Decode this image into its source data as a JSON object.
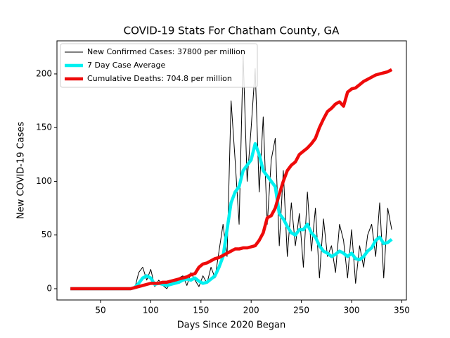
{
  "chart_data": {
    "type": "line",
    "title": "COVID-19 Stats For Chatham County, GA",
    "xlabel": "Days Since 2020 Began",
    "ylabel": "New COVID-19 Cases",
    "xlim": [
      6.6,
      354.6
    ],
    "ylim": [
      -10.5,
      230.8
    ],
    "xticks": [
      50,
      100,
      150,
      200,
      250,
      300,
      350
    ],
    "yticks": [
      0,
      50,
      100,
      150,
      200
    ],
    "legend": "upper left",
    "x": [
      20,
      24,
      28,
      32,
      36,
      40,
      44,
      48,
      52,
      56,
      60,
      64,
      68,
      72,
      76,
      80,
      84,
      88,
      92,
      96,
      100,
      104,
      108,
      112,
      116,
      120,
      124,
      128,
      132,
      136,
      140,
      144,
      148,
      152,
      156,
      160,
      164,
      168,
      172,
      176,
      180,
      184,
      188,
      192,
      196,
      200,
      204,
      208,
      212,
      216,
      220,
      224,
      228,
      232,
      236,
      240,
      244,
      248,
      252,
      256,
      260,
      264,
      268,
      272,
      276,
      280,
      284,
      288,
      292,
      296,
      300,
      304,
      308,
      312,
      316,
      320,
      324,
      328,
      332,
      336,
      340
    ],
    "series": [
      {
        "name": "New Confirmed Cases: 37800 per million",
        "color": "#000000",
        "width": 1,
        "values": [
          0,
          0,
          0,
          0,
          0,
          0,
          0,
          0,
          0,
          0,
          0,
          0,
          0,
          0,
          0,
          0,
          0,
          15,
          20,
          8,
          18,
          2,
          8,
          3,
          0,
          6,
          4,
          10,
          12,
          3,
          15,
          8,
          2,
          12,
          5,
          20,
          10,
          35,
          60,
          30,
          175,
          120,
          60,
          218,
          100,
          150,
          205,
          90,
          160,
          60,
          120,
          140,
          40,
          110,
          30,
          80,
          40,
          70,
          20,
          90,
          35,
          75,
          10,
          65,
          30,
          40,
          15,
          60,
          45,
          10,
          55,
          5,
          40,
          20,
          50,
          60,
          30,
          80,
          10,
          75,
          55
        ]
      },
      {
        "name": "7 Day Case Average",
        "color": "#00f0f0",
        "width": 4.5,
        "values": [
          0,
          0,
          0,
          0,
          0,
          0,
          0,
          0,
          0,
          0,
          0,
          0,
          0,
          0,
          0,
          0,
          1,
          5,
          10,
          12,
          10,
          4,
          5,
          4,
          3,
          4,
          5,
          6,
          8,
          9,
          8,
          10,
          7,
          5,
          6,
          9,
          12,
          20,
          30,
          55,
          80,
          90,
          95,
          110,
          115,
          120,
          135,
          125,
          110,
          105,
          100,
          95,
          70,
          65,
          58,
          52,
          50,
          55,
          55,
          60,
          52,
          48,
          40,
          35,
          33,
          30,
          32,
          35,
          33,
          30,
          33,
          28,
          27,
          30,
          35,
          38,
          45,
          48,
          42,
          43,
          46
        ]
      },
      {
        "name": "Cumulative Deaths: 704.8 per million",
        "color": "#ee0a0a",
        "width": 4.5,
        "values": [
          0,
          0,
          0,
          0,
          0,
          0,
          0,
          0,
          0,
          0,
          0,
          0,
          0,
          0,
          0,
          0,
          1,
          2,
          3,
          4,
          5,
          5,
          5,
          6,
          6,
          7,
          8,
          9,
          10,
          11,
          13,
          14,
          20,
          23,
          24,
          26,
          28,
          29,
          31,
          33,
          35,
          37,
          37,
          38,
          38,
          39,
          40,
          45,
          52,
          66,
          68,
          75,
          88,
          100,
          110,
          115,
          118,
          125,
          128,
          131,
          135,
          140,
          150,
          158,
          165,
          168,
          172,
          174,
          170,
          183,
          186,
          187,
          190,
          193,
          195,
          197,
          199,
          200,
          201,
          202,
          204
        ]
      }
    ]
  }
}
